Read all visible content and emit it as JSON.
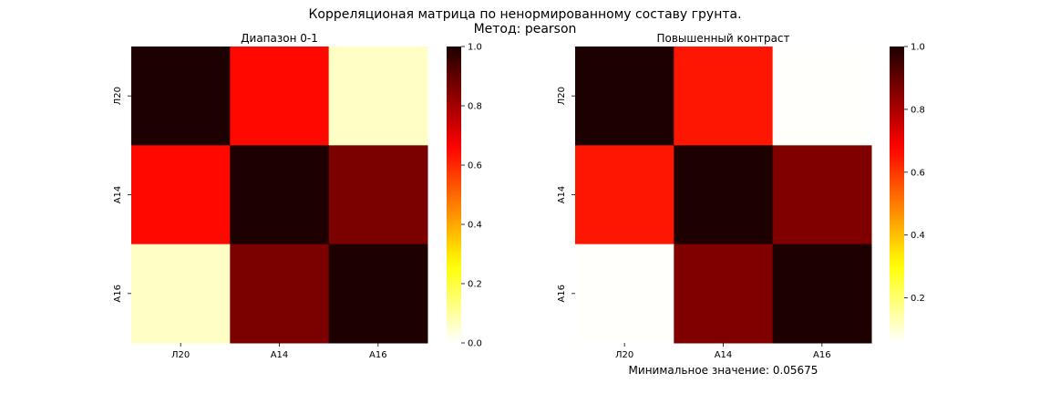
{
  "figure": {
    "title_line1": "Корреляционая матрица по ненормированному составу грунта.",
    "title_line2": "Метод: pearson"
  },
  "chart_data": [
    {
      "type": "heatmap",
      "title": "Диапазон 0-1",
      "categories": [
        "Л20",
        "А14",
        "А16"
      ],
      "matrix": [
        [
          1.0,
          0.65,
          0.06
        ],
        [
          0.65,
          1.0,
          0.86
        ],
        [
          0.06,
          0.86,
          1.0
        ]
      ],
      "vmin": 0.0,
      "vmax": 1.0,
      "colormap": "hot_r",
      "colorbar_ticks": [
        "0.0",
        "0.2",
        "0.4",
        "0.6",
        "0.8",
        "1.0"
      ],
      "colorbar_tick_values": [
        0.0,
        0.2,
        0.4,
        0.6,
        0.8,
        1.0
      ]
    },
    {
      "type": "heatmap",
      "title": "Повышенный контраст",
      "categories": [
        "Л20",
        "А14",
        "А16"
      ],
      "matrix": [
        [
          1.0,
          0.65,
          0.06
        ],
        [
          0.65,
          1.0,
          0.86
        ],
        [
          0.06,
          0.86,
          1.0
        ]
      ],
      "vmin": 0.05675,
      "vmax": 1.0,
      "colormap": "hot_r",
      "colorbar_ticks": [
        "0.2",
        "0.4",
        "0.6",
        "0.8",
        "1.0"
      ],
      "colorbar_tick_values": [
        0.2,
        0.4,
        0.6,
        0.8,
        1.0
      ],
      "annotation": "Минимальное значение: 0.05675"
    }
  ]
}
